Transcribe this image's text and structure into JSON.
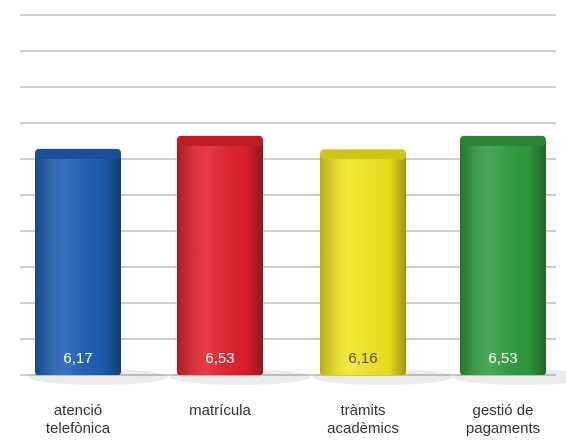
{
  "chart_data": {
    "type": "bar",
    "categories": [
      "atenció telefònica",
      "matrícula",
      "tràmits acadèmics",
      "gestió de pagaments"
    ],
    "values": [
      6.17,
      6.53,
      6.16,
      6.53
    ],
    "value_labels": [
      "6,17",
      "6,53",
      "6,16",
      "6,53"
    ],
    "colors": [
      "#1d5fb4",
      "#e3202b",
      "#f3e81e",
      "#2f9d3e"
    ],
    "ylim": [
      0,
      10
    ],
    "yticks": [
      0,
      1,
      2,
      3,
      4,
      5,
      6,
      7,
      8,
      9,
      10
    ],
    "grid": true
  }
}
